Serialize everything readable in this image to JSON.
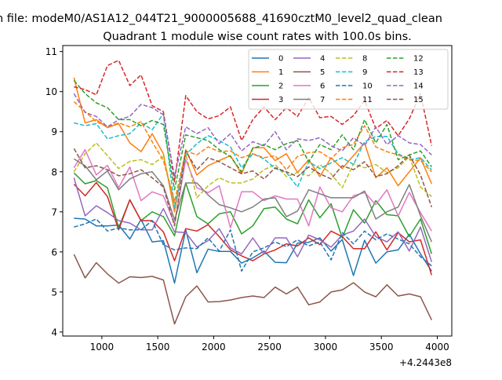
{
  "suptitle": "n file: modeM0/AS1A12_044T21_9000005688_41690cztM0_level2_quad_clean",
  "chart_data": {
    "type": "line",
    "title": "Quadrant 1 module wise count rates with 100.0s bins.",
    "xlabel": "",
    "ylabel": "",
    "x_offset_label": "+4.2443e8",
    "xlim": [
      650,
      4130
    ],
    "ylim": [
      3.9,
      11.15
    ],
    "xticks": [
      1000,
      1500,
      2000,
      2500,
      3000,
      3500,
      4000
    ],
    "yticks": [
      4,
      5,
      6,
      7,
      8,
      9,
      10,
      11
    ],
    "grid": false,
    "legend": {
      "position": "top-right",
      "columns": 4
    },
    "x": [
      750,
      850,
      950,
      1050,
      1150,
      1250,
      1350,
      1450,
      1550,
      1650,
      1750,
      1850,
      1950,
      2050,
      2150,
      2250,
      2350,
      2450,
      2550,
      2650,
      2750,
      2850,
      2950,
      3050,
      3150,
      3250,
      3350,
      3450,
      3550,
      3650,
      3750,
      3850,
      3950
    ],
    "series": [
      {
        "name": "0",
        "color": "#1f77b4",
        "style": "solid",
        "values": [
          6.84,
          6.82,
          6.65,
          6.65,
          6.67,
          6.32,
          6.81,
          6.25,
          6.28,
          5.22,
          6.55,
          5.48,
          6.07,
          6.01,
          6.01,
          5.72,
          5.85,
          6.02,
          5.74,
          5.73,
          6.22,
          6.24,
          6.35,
          6.02,
          6.31,
          5.41,
          6.29,
          5.72,
          6.0,
          6.05,
          6.44,
          5.95,
          5.52
        ]
      },
      {
        "name": "1",
        "color": "#ff7f0e",
        "style": "solid",
        "values": [
          10.35,
          9.22,
          9.3,
          9.1,
          9.2,
          8.72,
          8.5,
          8.95,
          8.45,
          7.0,
          8.55,
          7.92,
          8.15,
          8.28,
          8.4,
          7.95,
          8.6,
          8.6,
          8.28,
          8.45,
          7.98,
          8.3,
          7.88,
          8.35,
          8.08,
          8.4,
          8.72,
          7.85,
          8.1,
          7.65,
          8.0,
          8.35,
          7.7
        ]
      },
      {
        "name": "2",
        "color": "#2ca02c",
        "style": "solid",
        "values": [
          7.97,
          7.7,
          7.78,
          7.6,
          6.6,
          7.3,
          6.78,
          7.0,
          6.88,
          6.4,
          7.72,
          6.88,
          6.7,
          6.95,
          7.0,
          6.45,
          6.65,
          7.08,
          7.12,
          6.82,
          6.7,
          7.3,
          6.85,
          7.2,
          6.35,
          7.05,
          6.72,
          7.28,
          6.93,
          6.9,
          6.38,
          6.82,
          5.95
        ]
      },
      {
        "name": "3",
        "color": "#d62728",
        "style": "solid",
        "values": [
          7.69,
          7.4,
          7.73,
          7.38,
          6.55,
          7.3,
          6.78,
          6.78,
          6.5,
          5.78,
          6.58,
          6.52,
          6.68,
          6.38,
          6.05,
          5.9,
          5.78,
          5.95,
          6.05,
          6.2,
          6.15,
          6.35,
          6.18,
          6.52,
          6.38,
          6.08,
          6.08,
          6.5,
          6.05,
          6.48,
          6.25,
          6.3,
          5.42
        ]
      },
      {
        "name": "4",
        "color": "#9467bd",
        "style": "solid",
        "values": [
          7.85,
          6.9,
          7.15,
          6.98,
          6.78,
          6.72,
          6.55,
          6.55,
          7.08,
          6.5,
          6.48,
          6.12,
          6.28,
          6.58,
          6.1,
          5.95,
          6.35,
          5.95,
          6.35,
          6.35,
          5.88,
          6.42,
          6.3,
          6.12,
          6.42,
          6.52,
          6.82,
          6.38,
          6.25,
          6.5,
          6.02,
          6.62,
          5.75
        ]
      },
      {
        "name": "5",
        "color": "#8c564b",
        "style": "solid",
        "values": [
          5.94,
          5.35,
          5.73,
          5.45,
          5.22,
          5.38,
          5.36,
          5.39,
          5.3,
          4.2,
          4.88,
          5.15,
          4.75,
          4.76,
          4.8,
          4.86,
          4.9,
          4.86,
          5.12,
          4.95,
          5.12,
          4.68,
          4.75,
          5.0,
          5.05,
          5.23,
          5.0,
          4.88,
          5.18,
          4.9,
          4.95,
          4.88,
          4.3
        ]
      },
      {
        "name": "6",
        "color": "#e377c2",
        "style": "solid",
        "values": [
          8.1,
          8.55,
          7.92,
          8.16,
          7.6,
          8.12,
          7.28,
          7.5,
          7.4,
          6.7,
          8.3,
          7.6,
          7.48,
          7.65,
          6.6,
          7.5,
          7.5,
          7.28,
          7.4,
          7.32,
          7.32,
          6.65,
          7.62,
          7.1,
          7.0,
          7.4,
          7.48,
          7.18,
          7.55,
          6.9,
          7.48,
          6.98,
          6.52
        ]
      },
      {
        "name": "7",
        "color": "#7f7f7f",
        "style": "solid",
        "values": [
          8.32,
          8.15,
          7.8,
          8.02,
          7.55,
          7.82,
          7.95,
          8.0,
          7.65,
          6.8,
          7.72,
          7.72,
          7.42,
          7.18,
          7.1,
          7.0,
          7.12,
          7.32,
          7.35,
          6.88,
          7.02,
          7.55,
          7.45,
          7.35,
          7.35,
          7.35,
          7.52,
          6.82,
          7.0,
          7.12,
          7.68,
          6.9,
          6.25
        ]
      },
      {
        "name": "8",
        "color": "#bcbd22",
        "style": "dashed",
        "values": [
          8.0,
          8.45,
          8.72,
          8.4,
          8.08,
          8.26,
          8.3,
          8.18,
          8.38,
          7.2,
          8.45,
          7.35,
          7.65,
          7.85,
          7.72,
          7.72,
          7.82,
          8.05,
          8.18,
          7.88,
          7.98,
          7.9,
          8.18,
          7.95,
          7.6,
          8.2,
          8.1,
          8.18,
          7.98,
          8.1,
          8.38,
          7.62,
          7.38
        ]
      },
      {
        "name": "9",
        "color": "#17becf",
        "style": "dashed",
        "values": [
          9.22,
          9.15,
          9.2,
          8.82,
          8.9,
          8.95,
          9.22,
          9.05,
          9.45,
          7.1,
          8.42,
          8.7,
          8.9,
          8.78,
          8.62,
          8.1,
          8.45,
          8.32,
          8.08,
          7.98,
          7.62,
          8.25,
          8.08,
          8.22,
          8.35,
          8.18,
          8.75,
          8.88,
          8.88,
          8.45,
          8.3,
          8.35,
          8.05
        ]
      },
      {
        "name": "10",
        "color": "#1f77b4",
        "style": "dashed",
        "values": [
          6.62,
          6.7,
          6.82,
          6.52,
          6.6,
          6.55,
          6.55,
          6.78,
          6.18,
          6.05,
          6.1,
          6.08,
          6.35,
          6.02,
          6.55,
          5.52,
          6.0,
          6.1,
          6.25,
          6.13,
          6.3,
          6.15,
          6.25,
          5.8,
          6.48,
          6.2,
          6.52,
          6.3,
          6.45,
          6.32,
          6.2,
          5.88,
          5.65
        ]
      },
      {
        "name": "11",
        "color": "#ff7f0e",
        "style": "dashed",
        "values": [
          9.75,
          9.5,
          9.25,
          9.12,
          9.22,
          9.12,
          9.25,
          8.75,
          8.28,
          7.25,
          8.52,
          8.42,
          8.62,
          8.5,
          8.52,
          8.35,
          8.45,
          8.35,
          8.4,
          8.05,
          8.38,
          8.48,
          8.5,
          8.32,
          8.6,
          8.68,
          9.15,
          8.62,
          8.5,
          8.42,
          8.3,
          8.28,
          8.0
        ]
      },
      {
        "name": "12",
        "color": "#2ca02c",
        "style": "dashed",
        "values": [
          10.28,
          9.95,
          9.72,
          9.6,
          9.3,
          9.3,
          9.15,
          9.28,
          9.18,
          7.55,
          8.92,
          8.85,
          8.78,
          8.55,
          8.38,
          8.0,
          8.58,
          8.68,
          8.55,
          8.7,
          8.78,
          8.25,
          8.68,
          8.55,
          8.92,
          8.55,
          9.3,
          8.72,
          9.18,
          8.3,
          8.42,
          8.52,
          8.12
        ]
      },
      {
        "name": "13",
        "color": "#d62728",
        "style": "dashed",
        "values": [
          10.12,
          10.05,
          9.92,
          10.65,
          10.78,
          10.15,
          10.42,
          9.65,
          9.5,
          7.75,
          9.9,
          9.5,
          9.32,
          9.4,
          9.62,
          8.78,
          9.3,
          9.62,
          9.3,
          9.6,
          9.38,
          9.85,
          9.35,
          9.38,
          9.18,
          9.4,
          9.78,
          9.08,
          9.28,
          8.9,
          9.32,
          9.95,
          8.65
        ]
      },
      {
        "name": "14",
        "color": "#9467bd",
        "style": "dashed",
        "values": [
          9.95,
          9.48,
          9.38,
          9.12,
          9.3,
          9.38,
          9.68,
          9.6,
          9.42,
          7.88,
          9.12,
          8.95,
          9.1,
          8.7,
          8.95,
          8.52,
          8.75,
          8.65,
          9.0,
          8.55,
          8.82,
          8.78,
          8.85,
          8.65,
          8.52,
          8.85,
          8.65,
          9.12,
          8.68,
          8.9,
          8.72,
          8.68,
          8.42
        ]
      },
      {
        "name": "15",
        "color": "#8c564b",
        "style": "dashed",
        "values": [
          8.58,
          8.1,
          8.15,
          8.05,
          7.9,
          7.95,
          8.05,
          7.85,
          7.62,
          6.65,
          8.52,
          8.05,
          8.35,
          8.25,
          8.1,
          7.95,
          8.02,
          7.82,
          8.1,
          8.0,
          7.88,
          8.12,
          7.95,
          7.82,
          8.15,
          8.05,
          8.25,
          7.88,
          7.95,
          8.15,
          8.42,
          7.92,
          7.12
        ]
      }
    ]
  }
}
